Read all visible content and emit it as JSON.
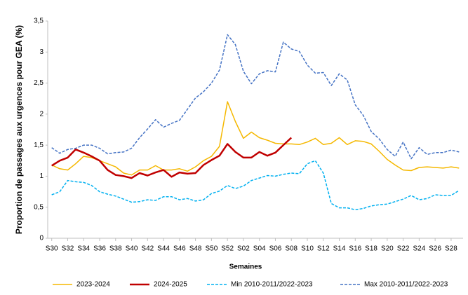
{
  "chart_data": {
    "type": "line",
    "y_label": "Proportion de passages aux urgences pour GEA (%)",
    "x_label": "Semaines",
    "categories": [
      "S30",
      null,
      "S32",
      null,
      "S34",
      null,
      "S36",
      null,
      "S38",
      null,
      "S40",
      null,
      "S42",
      null,
      "S44",
      null,
      "S46",
      null,
      "S48",
      null,
      "S50",
      null,
      "S52",
      null,
      "S02",
      null,
      "S04",
      null,
      "S06",
      null,
      "S08",
      null,
      "S10",
      null,
      "S12",
      null,
      "S14",
      null,
      "S16",
      null,
      "S18",
      null,
      "S20",
      null,
      "S22",
      null,
      "S24",
      null,
      "S26",
      null,
      "S28",
      null
    ],
    "series": [
      {
        "name": "2023-2024",
        "color": "#f5b800",
        "dashed": false,
        "values": [
          1.18,
          1.12,
          1.1,
          1.2,
          1.32,
          1.3,
          1.25,
          1.2,
          1.15,
          1.05,
          1.02,
          1.1,
          1.1,
          1.17,
          1.1,
          1.1,
          1.12,
          1.08,
          1.15,
          1.25,
          1.32,
          1.48,
          2.2,
          1.88,
          1.61,
          1.71,
          1.62,
          1.58,
          1.53,
          1.52,
          1.52,
          1.51,
          1.55,
          1.61,
          1.51,
          1.53,
          1.62,
          1.51,
          1.57,
          1.56,
          1.52,
          1.4,
          1.27,
          1.18,
          1.1,
          1.09,
          1.14,
          1.15,
          1.14,
          1.13,
          1.15,
          1.13
        ]
      },
      {
        "name": "2024-2025",
        "color": "#c00000",
        "dashed": false,
        "values": [
          1.17,
          1.25,
          1.3,
          1.43,
          1.38,
          1.32,
          1.25,
          1.1,
          1.02,
          1.0,
          0.97,
          1.05,
          1.01,
          1.06,
          1.1,
          0.99,
          1.06,
          1.04,
          1.05,
          1.18,
          1.26,
          1.33,
          1.52,
          1.39,
          1.3,
          1.3,
          1.39,
          1.33,
          1.38,
          1.5,
          1.62,
          null,
          null,
          null,
          null,
          null,
          null,
          null,
          null,
          null,
          null,
          null,
          null,
          null,
          null,
          null,
          null,
          null,
          null,
          null,
          null,
          null
        ]
      },
      {
        "name": "Min 2010-2011/2022-2023",
        "color": "#00b0f0",
        "dashed": true,
        "values": [
          0.7,
          0.75,
          0.93,
          0.91,
          0.9,
          0.85,
          0.75,
          0.71,
          0.68,
          0.63,
          0.58,
          0.59,
          0.62,
          0.61,
          0.67,
          0.67,
          0.62,
          0.64,
          0.6,
          0.62,
          0.72,
          0.76,
          0.85,
          0.8,
          0.84,
          0.93,
          0.97,
          1.01,
          1.0,
          1.03,
          1.05,
          1.04,
          1.2,
          1.25,
          1.05,
          0.56,
          0.49,
          0.49,
          0.46,
          0.48,
          0.52,
          0.54,
          0.55,
          0.59,
          0.63,
          0.69,
          0.62,
          0.64,
          0.7,
          0.69,
          0.69,
          0.77
        ]
      },
      {
        "name": "Max 2010-2011/2022-2023",
        "color": "#4472c4",
        "dashed": true,
        "values": [
          1.46,
          1.37,
          1.43,
          1.45,
          1.5,
          1.5,
          1.45,
          1.36,
          1.38,
          1.39,
          1.45,
          1.62,
          1.76,
          1.91,
          1.79,
          1.85,
          1.9,
          2.08,
          2.26,
          2.36,
          2.5,
          2.71,
          3.28,
          3.12,
          2.69,
          2.49,
          2.65,
          2.7,
          2.68,
          3.16,
          3.05,
          3.01,
          2.79,
          2.66,
          2.67,
          2.46,
          2.65,
          2.55,
          2.15,
          1.98,
          1.72,
          1.6,
          1.43,
          1.32,
          1.55,
          1.28,
          1.46,
          1.35,
          1.38,
          1.38,
          1.42,
          1.39
        ]
      }
    ],
    "ylim": [
      0,
      3.5
    ],
    "yticks": [
      0,
      {
        "value": 0.5,
        "label": "0,5"
      },
      1,
      {
        "value": 1.5,
        "label": "1,5"
      },
      2,
      {
        "value": 2.5,
        "label": "2,5"
      },
      3,
      {
        "value": 3.5,
        "label": "3,5"
      }
    ],
    "grid": false,
    "legend": "bottom"
  }
}
